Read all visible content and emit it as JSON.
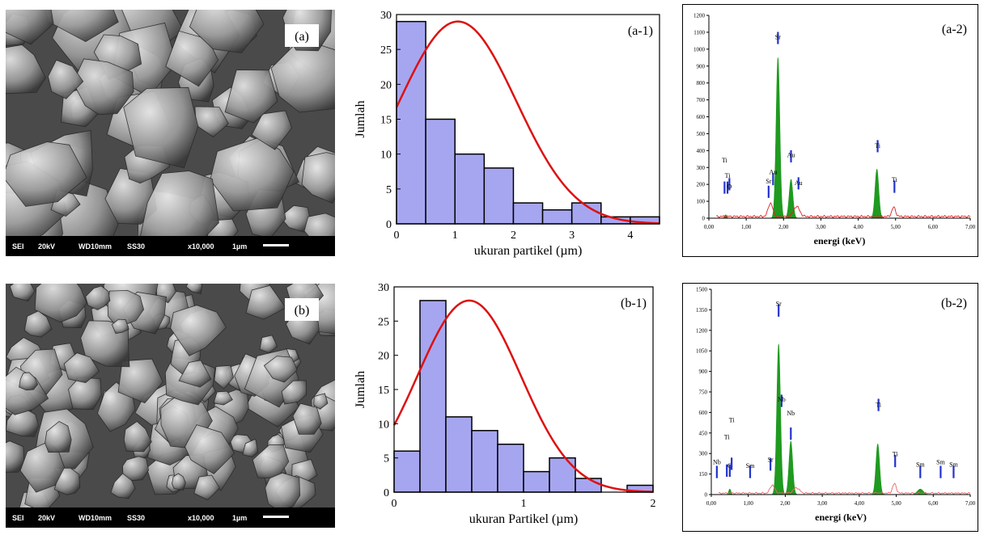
{
  "sem": [
    {
      "label": "(a)",
      "info": [
        "SEI",
        "20kV",
        "WD10mm",
        "SS30",
        "x10,000",
        "1µm"
      ]
    },
    {
      "label": "(b)",
      "info": [
        "SEI",
        "20kV",
        "WD10mm",
        "SS30",
        "x10,000",
        "1µm"
      ]
    }
  ],
  "chart_data": [
    {
      "type": "bar",
      "panel_label": "(a-1)",
      "xlabel": "ukuran partikel (µm)",
      "ylabel": "Jumlah",
      "bin_edges": [
        0,
        0.5,
        1,
        1.5,
        2,
        2.5,
        3,
        3.5,
        4,
        4.5
      ],
      "values": [
        29,
        15,
        10,
        8,
        3,
        2,
        3,
        1,
        1
      ],
      "xlim": [
        0,
        4.5
      ],
      "ylim": [
        0,
        30
      ],
      "xticks": [
        0,
        1,
        2,
        3,
        4
      ],
      "yticks": [
        0,
        5,
        10,
        15,
        20,
        25,
        30
      ],
      "fit_curve": {
        "type": "normal",
        "mean": 1.05,
        "peak": 29,
        "sd": 1.0
      },
      "colors": {
        "bar": "#a6a6f0",
        "curve": "#dd1111"
      }
    },
    {
      "type": "bar",
      "panel_label": "(b-1)",
      "xlabel": "ukuran Partikel (µm)",
      "ylabel": "Jumlah",
      "bin_edges": [
        0,
        0.2,
        0.4,
        0.6,
        0.8,
        1.0,
        1.2,
        1.4,
        1.6,
        1.8,
        2.0
      ],
      "values": [
        6,
        28,
        11,
        9,
        7,
        3,
        5,
        2,
        0,
        1
      ],
      "xlim": [
        0,
        2
      ],
      "ylim": [
        0,
        30
      ],
      "xticks": [
        0,
        1,
        2
      ],
      "yticks": [
        0,
        5,
        10,
        15,
        20,
        25,
        30
      ],
      "fit_curve": {
        "type": "normal",
        "mean": 0.58,
        "peak": 28,
        "sd": 0.4
      },
      "colors": {
        "bar": "#a6a6f0",
        "curve": "#dd1111"
      }
    },
    {
      "type": "area",
      "panel_label": "(a-2)",
      "xlabel": "energi (keV)",
      "xlim": [
        0,
        7
      ],
      "ylim": [
        0,
        1200
      ],
      "xticks": [
        "0,00",
        "1,00",
        "2,00",
        "3,00",
        "4,00",
        "5,00",
        "6,00",
        "7,00"
      ],
      "yticks": [
        0,
        100,
        200,
        300,
        400,
        500,
        600,
        700,
        800,
        900,
        1000,
        1100,
        1200
      ],
      "peaks": [
        {
          "x": 0.45,
          "y": 20,
          "w": 0.03
        },
        {
          "x": 1.85,
          "y": 950,
          "w": 0.05
        },
        {
          "x": 2.2,
          "y": 230,
          "w": 0.05
        },
        {
          "x": 4.5,
          "y": 290,
          "w": 0.05
        }
      ],
      "background_peaks": [
        {
          "x": 1.65,
          "y": 80,
          "w": 0.06
        },
        {
          "x": 2.35,
          "y": 60,
          "w": 0.08
        },
        {
          "x": 4.95,
          "y": 55,
          "w": 0.05
        }
      ],
      "markers": [
        {
          "x": 0.42,
          "y": 145,
          "label": "Ti",
          "ly": 330
        },
        {
          "x": 0.5,
          "y": 145,
          "label": "Ti",
          "ly": 240
        },
        {
          "x": 0.55,
          "y": 165,
          "label": "O",
          "ly": 175
        },
        {
          "x": 1.6,
          "y": 120,
          "label": "Sr",
          "ly": 205
        },
        {
          "x": 1.72,
          "y": 195,
          "label": "Au",
          "ly": 260
        },
        {
          "x": 1.85,
          "y": 1030,
          "label": "Sr",
          "ly": 1060
        },
        {
          "x": 2.2,
          "y": 330,
          "label": "Au",
          "ly": 360
        },
        {
          "x": 2.4,
          "y": 170,
          "label": "Au",
          "ly": 195
        },
        {
          "x": 4.52,
          "y": 390,
          "label": "Ti",
          "ly": 415
        },
        {
          "x": 4.97,
          "y": 150,
          "label": "Ti",
          "ly": 215
        }
      ],
      "colors": {
        "peak": "#1f9a1f",
        "baseline": "#dd2222",
        "marker": "#2233cc"
      }
    },
    {
      "type": "area",
      "panel_label": "(b-2)",
      "xlabel": "energi (keV)",
      "xlim": [
        0,
        7
      ],
      "ylim": [
        0,
        1500
      ],
      "xticks": [
        "0,00",
        "1,00",
        "2,00",
        "3,00",
        "4,00",
        "5,00",
        "6,00",
        "7,00"
      ],
      "yticks": [
        0,
        150,
        300,
        450,
        600,
        750,
        900,
        1050,
        1200,
        1350,
        1500
      ],
      "peaks": [
        {
          "x": 0.5,
          "y": 40,
          "w": 0.03
        },
        {
          "x": 1.82,
          "y": 1100,
          "w": 0.05
        },
        {
          "x": 2.15,
          "y": 390,
          "w": 0.05
        },
        {
          "x": 4.5,
          "y": 370,
          "w": 0.05
        },
        {
          "x": 5.65,
          "y": 40,
          "w": 0.08
        }
      ],
      "background_peaks": [
        {
          "x": 1.65,
          "y": 60,
          "w": 0.06
        },
        {
          "x": 2.3,
          "y": 40,
          "w": 0.08
        },
        {
          "x": 4.95,
          "y": 70,
          "w": 0.05
        }
      ],
      "markers": [
        {
          "x": 0.15,
          "y": 120,
          "label": "Nb",
          "ly": 220
        },
        {
          "x": 0.42,
          "y": 130,
          "label": "Ti",
          "ly": 405
        },
        {
          "x": 0.5,
          "y": 130,
          "label": "O",
          "ly": 195
        },
        {
          "x": 0.55,
          "y": 180,
          "label": "Ti",
          "ly": 530
        },
        {
          "x": 1.05,
          "y": 120,
          "label": "Sm",
          "ly": 195
        },
        {
          "x": 1.6,
          "y": 175,
          "label": "Sr",
          "ly": 240
        },
        {
          "x": 1.82,
          "y": 1300,
          "label": "Sr",
          "ly": 1380
        },
        {
          "x": 1.9,
          "y": 640,
          "label": "Nb",
          "ly": 680
        },
        {
          "x": 2.15,
          "y": 400,
          "label": "Nb",
          "ly": 580
        },
        {
          "x": 4.52,
          "y": 610,
          "label": "Ti",
          "ly": 640
        },
        {
          "x": 4.97,
          "y": 200,
          "label": "Ti",
          "ly": 280
        },
        {
          "x": 5.65,
          "y": 120,
          "label": "Sm",
          "ly": 205
        },
        {
          "x": 6.2,
          "y": 120,
          "label": "Sm",
          "ly": 220
        },
        {
          "x": 6.55,
          "y": 120,
          "label": "Sm",
          "ly": 205
        }
      ],
      "colors": {
        "peak": "#1f9a1f",
        "baseline": "#ee6666",
        "marker": "#2233cc"
      }
    }
  ]
}
